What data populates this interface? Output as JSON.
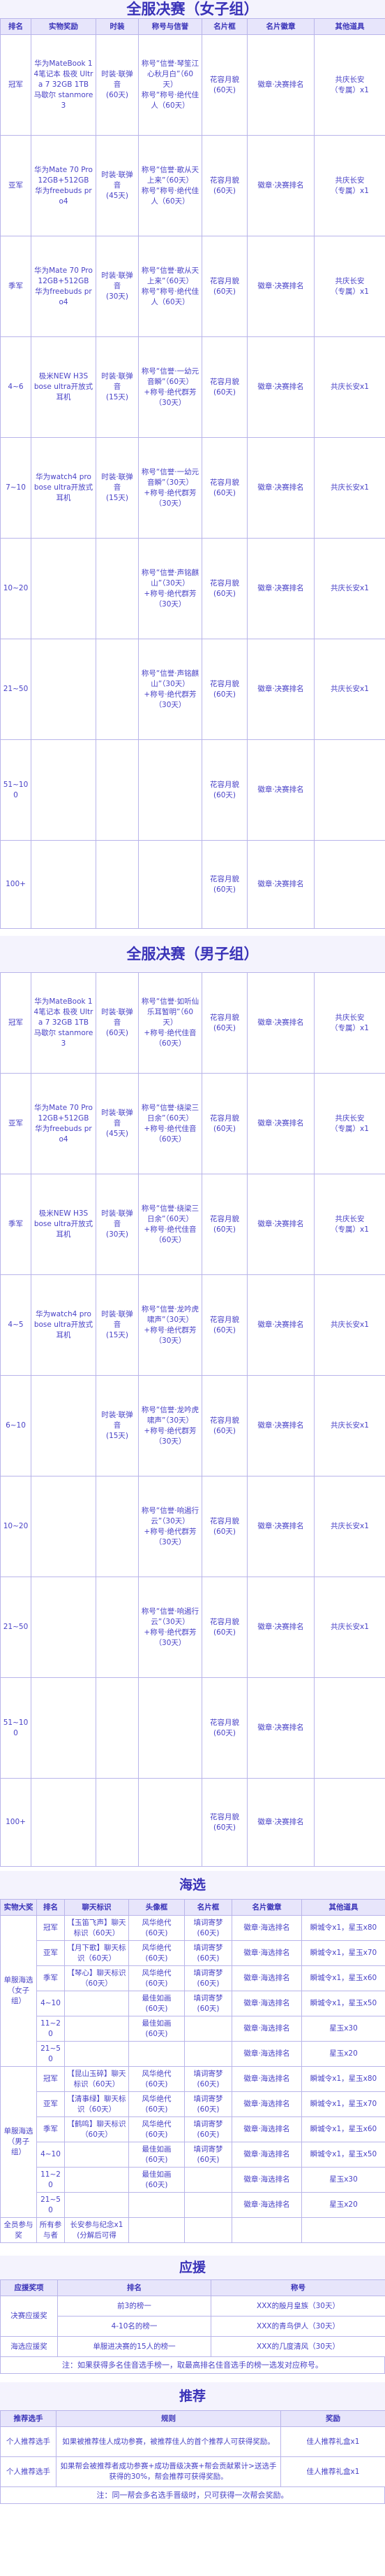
{
  "female": {
    "title": "全服决赛（女子组）",
    "headers": [
      "排名",
      "实物奖励",
      "时装",
      "称号与信誉",
      "名片框",
      "名片徽章",
      "其他道具"
    ],
    "rows": [
      [
        "冠军",
        "华为MateBook 14笔记本 极夜 Ultra 7 32GB 1TB\n马歇尔 stanmore3",
        "时装·联弹音\n(60天)",
        "称号“信誉·琴笙江心秋月白”（60天）\n称号“称号·绝代佳人（60天）",
        "花容月貌\n(60天)",
        "徽章·决赛排名",
        "共庆长安\n（专属）x1"
      ],
      [
        "亚军",
        "华为Mate 70 Pro 12GB+512GB\n华为freebuds pro4",
        "时装·联弹音\n(45天)",
        "称号“信誉·歌从天上来”（60天）\n称号“称号·绝代佳人（60天）",
        "花容月貌\n(60天)",
        "徽章·决赛排名",
        "共庆长安\n（专属）x1"
      ],
      [
        "季军",
        "华为Mate 70 Pro 12GB+512GB\n华为freebuds pro4",
        "时装·联弹音\n(30天)",
        "称号“信誉·歌从天上来”（60天）\n称号“称号·绝代佳人（60天）",
        "花容月貌\n(60天)",
        "徽章·决赛排名",
        "共庆长安\n（专属）x1"
      ],
      [
        "4~6",
        "极米NEW H3S\nbose ultra开放式耳机",
        "时装·联弹音\n(15天)",
        "称号“信誉·一幼元音瞬”（60天）\n+称号·绝代群芳（30天）",
        "花容月貌\n(60天)",
        "徽章·决赛排名",
        "共庆长安x1"
      ],
      [
        "7~10",
        "华为watch4 pro\nbose ultra开放式耳机",
        "时装·联弹音\n(15天)",
        "称号“信誉·一幼元音瞬”（30天）\n+称号·绝代群芳（30天）",
        "花容月貌\n(60天)",
        "徽章·决赛排名",
        "共庆长安x1"
      ],
      [
        "10~20",
        "",
        "",
        "称号“信誉·声铭麒山”（30天）\n+称号·绝代群芳（30天）",
        "花容月貌\n(60天)",
        "徽章·决赛排名",
        "共庆长安x1"
      ],
      [
        "21~50",
        "",
        "",
        "称号“信誉·声铭麒山”（30天）\n+称号·绝代群芳（30天）",
        "花容月貌\n(60天)",
        "徽章·决赛排名",
        "共庆长安x1"
      ],
      [
        "51~100",
        "",
        "",
        "",
        "花容月貌\n(60天)",
        "徽章·决赛排名",
        ""
      ],
      [
        "100+",
        "",
        "",
        "",
        "花容月貌\n(60天)",
        "徽章·决赛排名",
        ""
      ]
    ]
  },
  "male": {
    "title": "全服决赛（男子组）",
    "headers": [
      "排名",
      "实物奖励",
      "时装",
      "称号与信誉",
      "名片框",
      "名片徽章",
      "其他道具"
    ],
    "rows": [
      [
        "冠军",
        "华为MateBook 14笔记本 极夜 Ultra 7 32GB 1TB\n马歇尔 stanmore3",
        "时装·联弹音\n(60天)",
        "称号“信誉·如听仙乐耳暂明”（60天）\n+称号·绝代佳音（60天）",
        "花容月貌\n(60天)",
        "徽章·决赛排名",
        "共庆长安\n（专属）x1"
      ],
      [
        "亚军",
        "华为Mate 70 Pro 12GB+512GB\n华为freebuds pro4",
        "时装·联弹音\n(45天)",
        "称号“信誉·绕梁三日余”（60天）\n+称号·绝代佳音（60天）",
        "花容月貌\n(60天)",
        "徽章·决赛排名",
        "共庆长安\n（专属）x1"
      ],
      [
        "季军",
        "极米NEW H3S\nbose ultra开放式耳机",
        "时装·联弹音\n(30天)",
        "称号“信誉·绕梁三日余”（60天）\n+称号·绝代佳音（60天）",
        "花容月貌\n(60天)",
        "徽章·决赛排名",
        "共庆长安\n（专属）x1"
      ],
      [
        "4~5",
        "华为watch4 pro\nbose ultra开放式耳机",
        "时装·联弹音\n(15天)",
        "称号“信誉·龙吟虎啸声”（30天）\n+称号·绝代群芳（30天）",
        "花容月貌\n(60天)",
        "徽章·决赛排名",
        "共庆长安x1"
      ],
      [
        "6~10",
        "",
        "时装·联弹音\n(15天)",
        "称号“信誉·龙吟虎啸声”（30天）\n+称号·绝代群芳（30天）",
        "花容月貌\n(60天)",
        "徽章·决赛排名",
        "共庆长安x1"
      ],
      [
        "10~20",
        "",
        "",
        "称号“信誉·响遏行云”（30天）\n+称号·绝代群芳（30天）",
        "花容月貌\n(60天)",
        "徽章·决赛排名",
        "共庆长安x1"
      ],
      [
        "21~50",
        "",
        "",
        "称号“信誉·响遏行云”（30天）\n+称号·绝代群芳（30天）",
        "花容月貌\n(60天)",
        "徽章·决赛排名",
        "共庆长安x1"
      ],
      [
        "51~100",
        "",
        "",
        "",
        "花容月貌\n(60天)",
        "徽章·决赛排名",
        ""
      ],
      [
        "100+",
        "",
        "",
        "",
        "花容月貌\n(60天)",
        "徽章·决赛排名",
        ""
      ]
    ]
  },
  "haixuan": {
    "title": "海选",
    "headers": [
      "实物大奖",
      "排名",
      "聊天标识",
      "头像框",
      "名片框",
      "名片徽章",
      "其他道具"
    ],
    "group_female": "单服海选\n（女子组）",
    "group_male": "单服海选\n（男子组）",
    "rows_female": [
      [
        "冠军",
        "【玉笛飞声】聊天标识（60天）",
        "风华绝代\n(60天)",
        "填词寄梦\n(60天)",
        "徽章·海选排名",
        "瞬城令x1，星玉x80"
      ],
      [
        "亚军",
        "【月下歌】聊天标识（60天）",
        "风华绝代\n(60天)",
        "填词寄梦\n(60天)",
        "徽章·海选排名",
        "瞬城令x1，星玉x70"
      ],
      [
        "季军",
        "【琴心】聊天标识（60天）",
        "风华绝代\n(60天)",
        "填词寄梦\n(60天)",
        "徽章·海选排名",
        "瞬城令x1，星玉x60"
      ],
      [
        "4~10",
        "",
        "最佳如画\n(60天)",
        "填词寄梦\n(60天)",
        "徽章·海选排名",
        "瞬城令x1，星玉x50"
      ],
      [
        "11~20",
        "",
        "最佳如画\n(60天)",
        "",
        "徽章·海选排名",
        "星玉x30"
      ],
      [
        "21~50",
        "",
        "",
        "",
        "徽章·海选排名",
        "星玉x20"
      ]
    ],
    "rows_male": [
      [
        "冠军",
        "【昆山玉碎】聊天标识（60天）",
        "风华绝代\n(60天)",
        "填词寄梦\n(60天)",
        "徽章·海选排名",
        "瞬城令x1，星玉x80"
      ],
      [
        "亚军",
        "【清事绿】聊天标识（60天）",
        "风华绝代\n(60天)",
        "填词寄梦\n(60天)",
        "徽章·海选排名",
        "瞬城令x1，星玉x70"
      ],
      [
        "季军",
        "【鹤鸣】聊天标识（60天）",
        "风华绝代\n(60天)",
        "填词寄梦\n(60天)",
        "徽章·海选排名",
        "瞬城令x1，星玉x60"
      ],
      [
        "4~10",
        "",
        "最佳如画\n(60天)",
        "填词寄梦\n(60天)",
        "徽章·海选排名",
        "瞬城令x1，星玉x50"
      ],
      [
        "11~20",
        "",
        "最佳如画\n(60天)",
        "",
        "徽章·海选排名",
        "星玉x30"
      ],
      [
        "21~50",
        "",
        "",
        "",
        "徽章·海选排名",
        "星玉x20"
      ]
    ],
    "row_all": [
      "全员参与奖",
      "所有参与者",
      "长安参与纪念x1\n(分解后可得",
      "",
      "",
      "",
      ""
    ]
  },
  "yingyuan": {
    "title": "应援",
    "headers": [
      "应援奖项",
      "排名",
      "称号"
    ],
    "rows": [
      [
        "决赛应援奖",
        "前3的榜一",
        "XXX的殷月皇族（30天）"
      ],
      [
        "决赛应援奖",
        "4-10名的榜一",
        "XXX的青鸟伊人（30天）"
      ],
      [
        "海选应援奖",
        "单服进决赛的15人的榜一",
        "XXX的几度清风（30天）"
      ]
    ],
    "note": "注：如果获得多名佳音选手榜一，取最高排名佳音选手的榜一选发对应称号。"
  },
  "tuijian": {
    "title": "推荐",
    "headers": [
      "推荐选手",
      "规则",
      "奖励"
    ],
    "rows": [
      [
        "个人推荐选手",
        "如果被推荐佳人成功参赛，被推荐佳人的首个推荐人可获得奖励。",
        "佳人推荐礼盒x1"
      ],
      [
        "个人推荐选手",
        "如果帮会被推荐者成功参赛+成功晋级决赛+帮会贡献累计>送选手获得的30%，帮会推荐可获得奖励。",
        "佳人推荐礼盒x1"
      ]
    ],
    "note": "注：同一帮会多名选手晋级时，只可获得一次帮会奖励。"
  }
}
